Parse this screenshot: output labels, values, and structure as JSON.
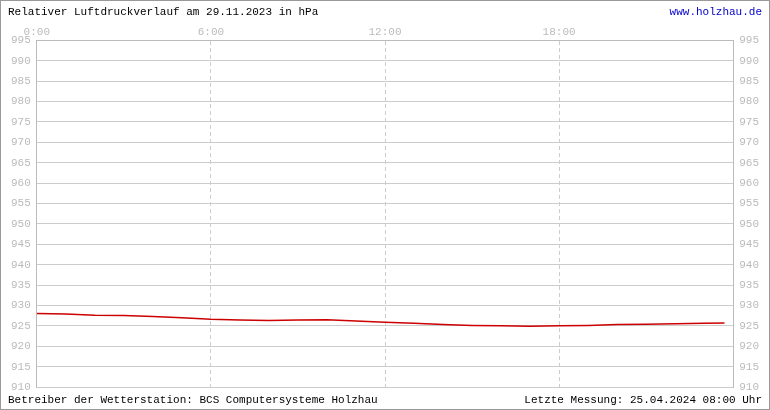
{
  "chart_data": {
    "type": "line",
    "title": "Relativer Luftdruckverlauf am 29.11.2023 in hPa",
    "annotations": [
      "www.holzhau.de",
      "Betreiber der Wetterstation: BCS Computersysteme Holzhau",
      "Letzte Messung: 25.04.2024 08:00 Uhr"
    ],
    "x": [
      0,
      1,
      2,
      3,
      4,
      5,
      6,
      7,
      8,
      9,
      10,
      11,
      12,
      13,
      14,
      15,
      16,
      17,
      18,
      19,
      20,
      21,
      22,
      23,
      23.7
    ],
    "values": [
      928.0,
      927.9,
      927.6,
      927.5,
      927.3,
      927.0,
      926.6,
      926.4,
      926.3,
      926.4,
      926.5,
      926.2,
      925.9,
      925.6,
      925.3,
      925.1,
      925.0,
      924.9,
      925.0,
      925.1,
      925.3,
      925.4,
      925.5,
      925.6,
      925.7
    ],
    "color": "#cc0000",
    "xlim": [
      0,
      24
    ],
    "xticks": [
      {
        "value": 0,
        "label": "0:00"
      },
      {
        "value": 6,
        "label": "6:00"
      },
      {
        "value": 12,
        "label": "12:00"
      },
      {
        "value": 18,
        "label": "18:00"
      }
    ],
    "ylim": [
      910,
      995
    ],
    "yticks": [
      910,
      915,
      920,
      925,
      930,
      935,
      940,
      945,
      950,
      955,
      960,
      965,
      970,
      975,
      980,
      985,
      990,
      995
    ],
    "y2lim": [
      910,
      995
    ],
    "y2ticks": [
      910,
      915,
      920,
      925,
      930,
      935,
      940,
      945,
      950,
      955,
      960,
      965,
      970,
      975,
      980,
      985,
      990,
      995
    ],
    "grid": true
  }
}
